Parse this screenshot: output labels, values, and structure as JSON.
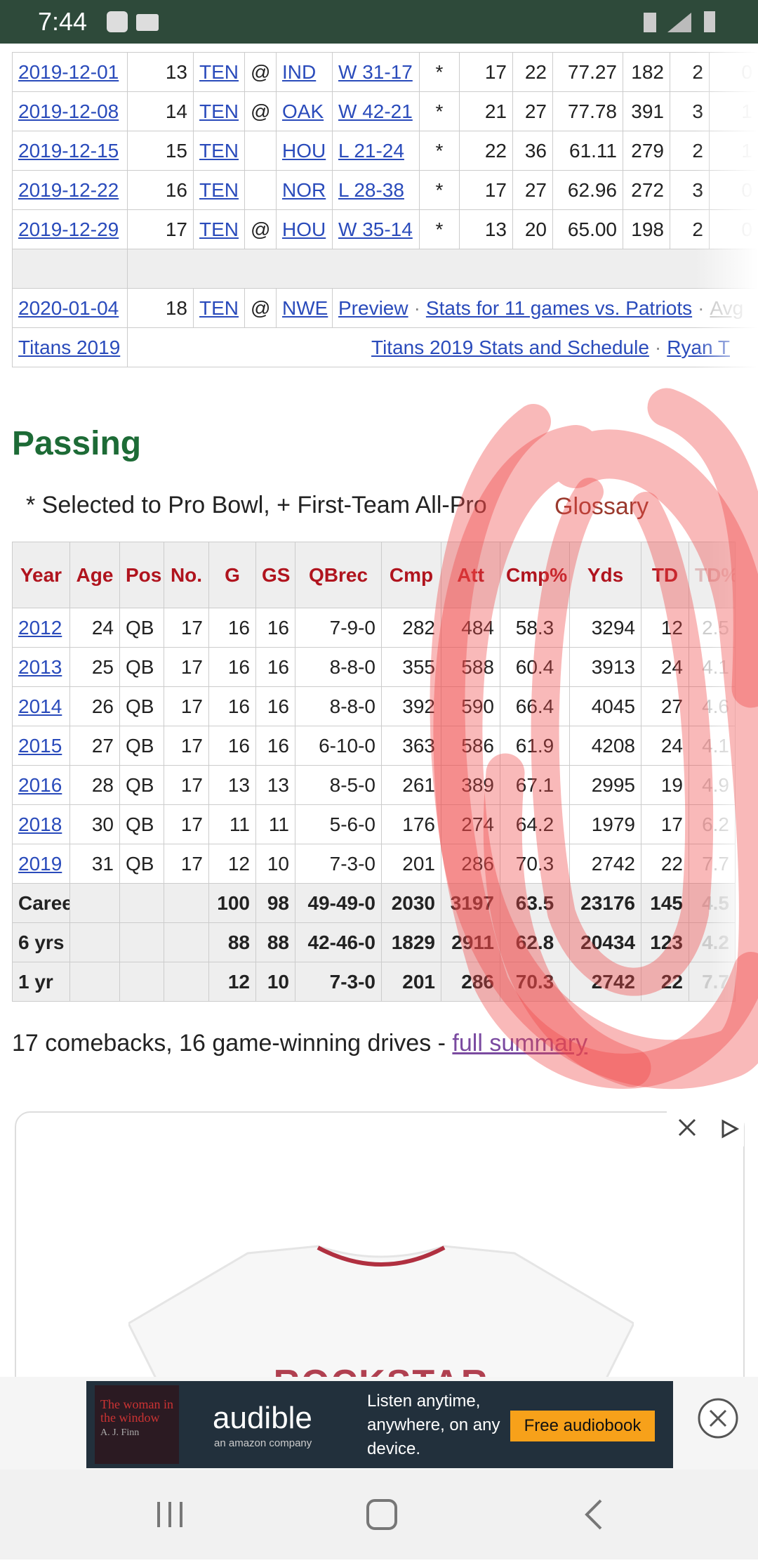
{
  "status_bar": {
    "time": "7:44"
  },
  "games": {
    "rows": [
      [
        "2019-12-01",
        "13",
        "TEN",
        "@",
        "IND",
        "W 31-17",
        "*",
        "17",
        "22",
        "77.27",
        "182",
        "2",
        "0"
      ],
      [
        "2019-12-08",
        "14",
        "TEN",
        "@",
        "OAK",
        "W 42-21",
        "*",
        "21",
        "27",
        "77.78",
        "391",
        "3",
        "1"
      ],
      [
        "2019-12-15",
        "15",
        "TEN",
        null,
        "HOU",
        "L 21-24",
        "*",
        "22",
        "36",
        "61.11",
        "279",
        "2",
        "1"
      ],
      [
        "2019-12-22",
        "16",
        "TEN",
        null,
        "NOR",
        "L 28-38",
        "*",
        "17",
        "27",
        "62.96",
        "272",
        "3",
        "0"
      ],
      [
        "2019-12-29",
        "17",
        "TEN",
        "@",
        "HOU",
        "W 35-14",
        "*",
        "13",
        "20",
        "65.00",
        "198",
        "2",
        "0"
      ]
    ],
    "playoff": {
      "cells": [
        "2020-01-04",
        "18",
        "TEN",
        "@",
        "NWE"
      ],
      "links": [
        "Preview",
        "Stats for 11 games vs. Patriots",
        "Avg"
      ]
    },
    "footer": {
      "team": "Titans 2019",
      "links": [
        "Titans 2019 Stats and Schedule",
        "Ryan T"
      ]
    },
    "sep": "·"
  },
  "passing": {
    "title": "Passing",
    "note": "* Selected to Pro Bowl, + First-Team All-Pro",
    "glossary": "Glossary",
    "headers": [
      "Year",
      "Age",
      "Pos",
      "No.",
      "G",
      "GS",
      "QBrec",
      "Cmp",
      "Att",
      "Cmp%",
      "Yds",
      "TD",
      "TD%"
    ],
    "rows": [
      [
        "2012",
        "24",
        "QB",
        "17",
        "16",
        "16",
        "7-9-0",
        "282",
        "484",
        "58.3",
        "3294",
        "12",
        "2.5"
      ],
      [
        "2013",
        "25",
        "QB",
        "17",
        "16",
        "16",
        "8-8-0",
        "355",
        "588",
        "60.4",
        "3913",
        "24",
        "4.1"
      ],
      [
        "2014",
        "26",
        "QB",
        "17",
        "16",
        "16",
        "8-8-0",
        "392",
        "590",
        "66.4",
        "4045",
        "27",
        "4.6"
      ],
      [
        "2015",
        "27",
        "QB",
        "17",
        "16",
        "16",
        "6-10-0",
        "363",
        "586",
        "61.9",
        "4208",
        "24",
        "4.1"
      ],
      [
        "2016",
        "28",
        "QB",
        "17",
        "13",
        "13",
        "8-5-0",
        "261",
        "389",
        "67.1",
        "2995",
        "19",
        "4.9"
      ],
      [
        "2018",
        "30",
        "QB",
        "17",
        "11",
        "11",
        "5-6-0",
        "176",
        "274",
        "64.2",
        "1979",
        "17",
        "6.2"
      ],
      [
        "2019",
        "31",
        "QB",
        "17",
        "12",
        "10",
        "7-3-0",
        "201",
        "286",
        "70.3",
        "2742",
        "22",
        "7.7"
      ]
    ],
    "totals": [
      [
        "Career",
        null,
        null,
        null,
        "100",
        "98",
        "49-49-0",
        "2030",
        "3197",
        "63.5",
        "23176",
        "145",
        "4.5"
      ],
      [
        "6 yrs",
        null,
        null,
        null,
        "88",
        "88",
        "42-46-0",
        "1829",
        "2911",
        "62.8",
        "20434",
        "123",
        "4.2"
      ],
      [
        "1 yr",
        null,
        null,
        null,
        "12",
        "10",
        "7-3-0",
        "201",
        "286",
        "70.3",
        "2742",
        "22",
        "7.7"
      ]
    ]
  },
  "summary": {
    "text": "17 comebacks, 16 game-winning drives - ",
    "link": "full summary"
  },
  "ad": {
    "shirt_text": "ROCKSTAR",
    "book": "The woman in the window",
    "author": "A. J. Finn",
    "brand": "audible",
    "sub": "an amazon company",
    "tagline": "Listen anytime, anywhere, on any device.",
    "button": "Free audiobook"
  }
}
